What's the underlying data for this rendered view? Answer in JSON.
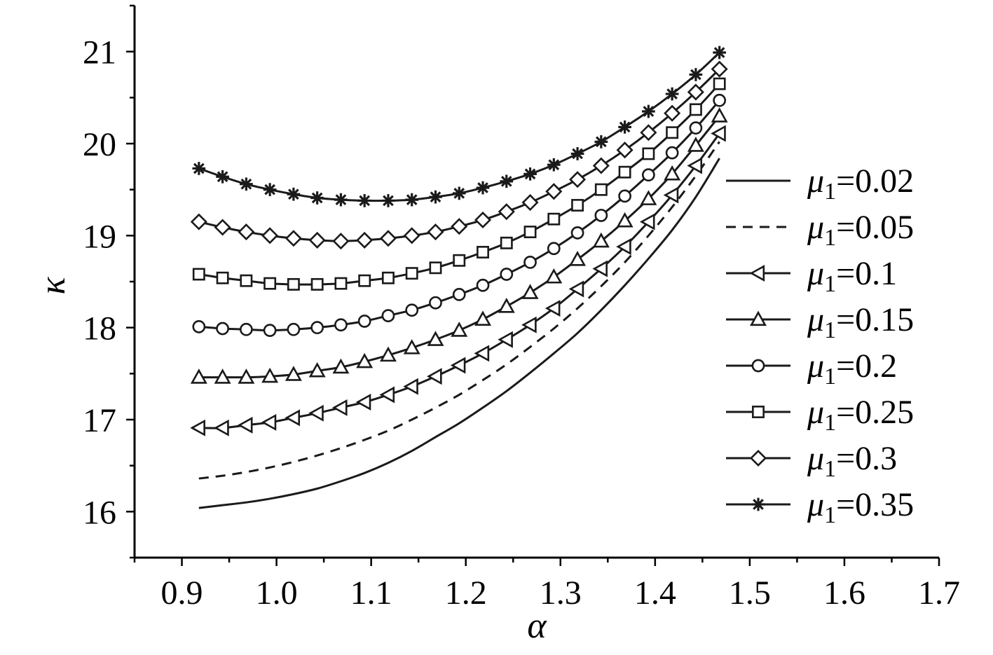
{
  "chart_data": {
    "type": "line",
    "title": "",
    "xlabel": "α",
    "ylabel": "κ",
    "xlim": [
      0.85,
      1.7
    ],
    "ylim": [
      15.5,
      21.5
    ],
    "x_ticks": [
      0.9,
      1.0,
      1.1,
      1.2,
      1.3,
      1.4,
      1.5,
      1.6,
      1.7
    ],
    "x_tick_labels": [
      "0.9",
      "1.0",
      "1.1",
      "1.2",
      "1.3",
      "1.4",
      "1.5",
      "1.6",
      "1.7"
    ],
    "y_ticks": [
      16,
      17,
      18,
      19,
      20,
      21
    ],
    "y_tick_labels": [
      "16",
      "17",
      "18",
      "19",
      "20",
      "21"
    ],
    "grid": false,
    "legend_position": "right",
    "x": [
      0.918,
      0.943,
      0.968,
      0.993,
      1.018,
      1.043,
      1.068,
      1.093,
      1.118,
      1.143,
      1.168,
      1.193,
      1.218,
      1.243,
      1.268,
      1.293,
      1.318,
      1.343,
      1.368,
      1.393,
      1.418,
      1.443,
      1.468
    ],
    "series": [
      {
        "name": "μ1=0.02",
        "marker": "none",
        "dash": "solid",
        "values": [
          16.04,
          16.07,
          16.1,
          16.14,
          16.19,
          16.25,
          16.33,
          16.42,
          16.53,
          16.66,
          16.81,
          16.96,
          17.13,
          17.31,
          17.51,
          17.72,
          17.94,
          18.19,
          18.46,
          18.75,
          19.06,
          19.42,
          19.84
        ]
      },
      {
        "name": "μ1=0.05",
        "marker": "none",
        "dash": "dashed",
        "values": [
          16.36,
          16.39,
          16.43,
          16.48,
          16.54,
          16.61,
          16.69,
          16.78,
          16.88,
          17.0,
          17.13,
          17.27,
          17.43,
          17.6,
          17.79,
          17.99,
          18.21,
          18.45,
          18.71,
          19.0,
          19.31,
          19.65,
          20.02
        ]
      },
      {
        "name": "μ1=0.1",
        "marker": "triangle-left",
        "dash": "solid",
        "values": [
          16.91,
          16.91,
          16.94,
          16.97,
          17.02,
          17.07,
          17.13,
          17.19,
          17.27,
          17.36,
          17.47,
          17.59,
          17.72,
          17.87,
          18.03,
          18.21,
          18.42,
          18.64,
          18.88,
          19.15,
          19.44,
          19.76,
          20.11
        ]
      },
      {
        "name": "μ1=0.15",
        "marker": "triangle-up",
        "dash": "solid",
        "values": [
          17.46,
          17.46,
          17.46,
          17.47,
          17.49,
          17.53,
          17.57,
          17.63,
          17.7,
          17.78,
          17.87,
          17.97,
          18.09,
          18.23,
          18.38,
          18.55,
          18.74,
          18.94,
          19.16,
          19.4,
          19.67,
          19.98,
          20.3
        ]
      },
      {
        "name": "μ1=0.2",
        "marker": "circle",
        "dash": "solid",
        "values": [
          18.01,
          17.99,
          17.98,
          17.97,
          17.98,
          18.0,
          18.03,
          18.07,
          18.13,
          18.19,
          18.27,
          18.36,
          18.46,
          18.58,
          18.71,
          18.86,
          19.03,
          19.22,
          19.43,
          19.66,
          19.9,
          20.17,
          20.47
        ]
      },
      {
        "name": "μ1=0.25",
        "marker": "square",
        "dash": "solid",
        "values": [
          18.58,
          18.54,
          18.51,
          18.48,
          18.47,
          18.47,
          18.48,
          18.51,
          18.54,
          18.59,
          18.65,
          18.73,
          18.82,
          18.92,
          19.04,
          19.18,
          19.33,
          19.5,
          19.69,
          19.89,
          20.12,
          20.37,
          20.65
        ]
      },
      {
        "name": "μ1=0.3",
        "marker": "diamond",
        "dash": "solid",
        "values": [
          19.15,
          19.09,
          19.04,
          19.0,
          18.97,
          18.95,
          18.94,
          18.95,
          18.97,
          19.0,
          19.04,
          19.1,
          19.17,
          19.26,
          19.36,
          19.48,
          19.61,
          19.76,
          19.93,
          20.12,
          20.33,
          20.56,
          20.81
        ]
      },
      {
        "name": "μ1=0.35",
        "marker": "star",
        "dash": "solid",
        "values": [
          19.73,
          19.64,
          19.56,
          19.5,
          19.45,
          19.41,
          19.39,
          19.38,
          19.38,
          19.39,
          19.42,
          19.46,
          19.52,
          19.59,
          19.67,
          19.77,
          19.89,
          20.02,
          20.18,
          20.35,
          20.54,
          20.75,
          20.99
        ]
      }
    ]
  },
  "legend": [
    {
      "mu": "μ",
      "sub": "1",
      "value": "=0.02"
    },
    {
      "mu": "μ",
      "sub": "1",
      "value": "=0.05"
    },
    {
      "mu": "μ",
      "sub": "1",
      "value": "=0.1"
    },
    {
      "mu": "μ",
      "sub": "1",
      "value": "=0.15"
    },
    {
      "mu": "μ",
      "sub": "1",
      "value": "=0.2"
    },
    {
      "mu": "μ",
      "sub": "1",
      "value": "=0.25"
    },
    {
      "mu": "μ",
      "sub": "1",
      "value": "=0.3"
    },
    {
      "mu": "μ",
      "sub": "1",
      "value": "=0.35"
    }
  ],
  "colors": {
    "ink": "#1a1a1a",
    "background": "#ffffff"
  }
}
